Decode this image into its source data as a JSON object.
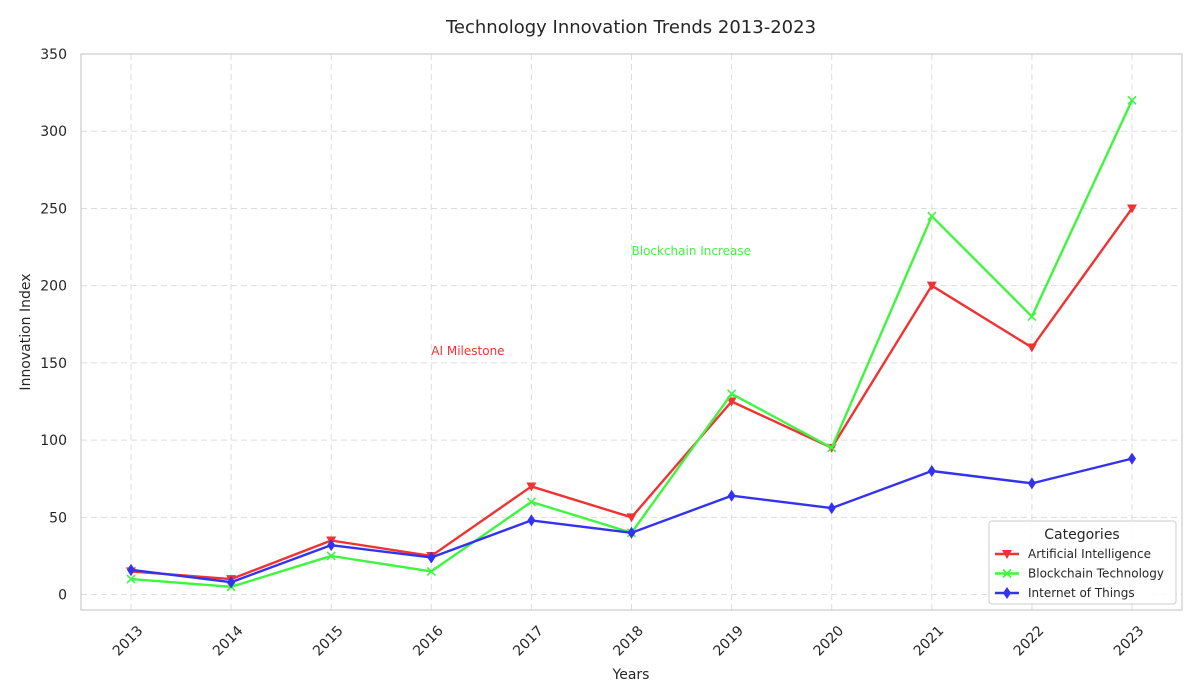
{
  "chart_data": {
    "type": "line",
    "title": "Technology Innovation Trends 2013-2023",
    "xlabel": "Years",
    "ylabel": "Innovation Index",
    "categories": [
      "2013",
      "2014",
      "2015",
      "2016",
      "2017",
      "2018",
      "2019",
      "2020",
      "2021",
      "2022",
      "2023"
    ],
    "ylim": [
      -10,
      350
    ],
    "yticks": [
      0,
      50,
      100,
      150,
      200,
      250,
      300,
      350
    ],
    "grid": true,
    "legend": {
      "title": "Categories",
      "position": "lower-right"
    },
    "series": [
      {
        "name": "Artificial Intelligence",
        "color": "#f03232",
        "marker": "triangle-down",
        "values": [
          15,
          10,
          35,
          25,
          70,
          50,
          125,
          95,
          200,
          160,
          250
        ]
      },
      {
        "name": "Blockchain Technology",
        "color": "#3ff53f",
        "marker": "x",
        "values": [
          10,
          5,
          25,
          15,
          60,
          40,
          130,
          95,
          245,
          180,
          320
        ]
      },
      {
        "name": "Internet of Things",
        "color": "#3232f0",
        "marker": "diamond",
        "values": [
          16,
          8,
          32,
          24,
          48,
          40,
          64,
          56,
          80,
          72,
          88
        ]
      }
    ],
    "annotations": [
      {
        "text": "AI Milestone",
        "x": "2016",
        "y": 155,
        "color": "#f03232"
      },
      {
        "text": "Blockchain Increase",
        "x": "2018",
        "y": 220,
        "color": "#3ff53f"
      }
    ]
  }
}
